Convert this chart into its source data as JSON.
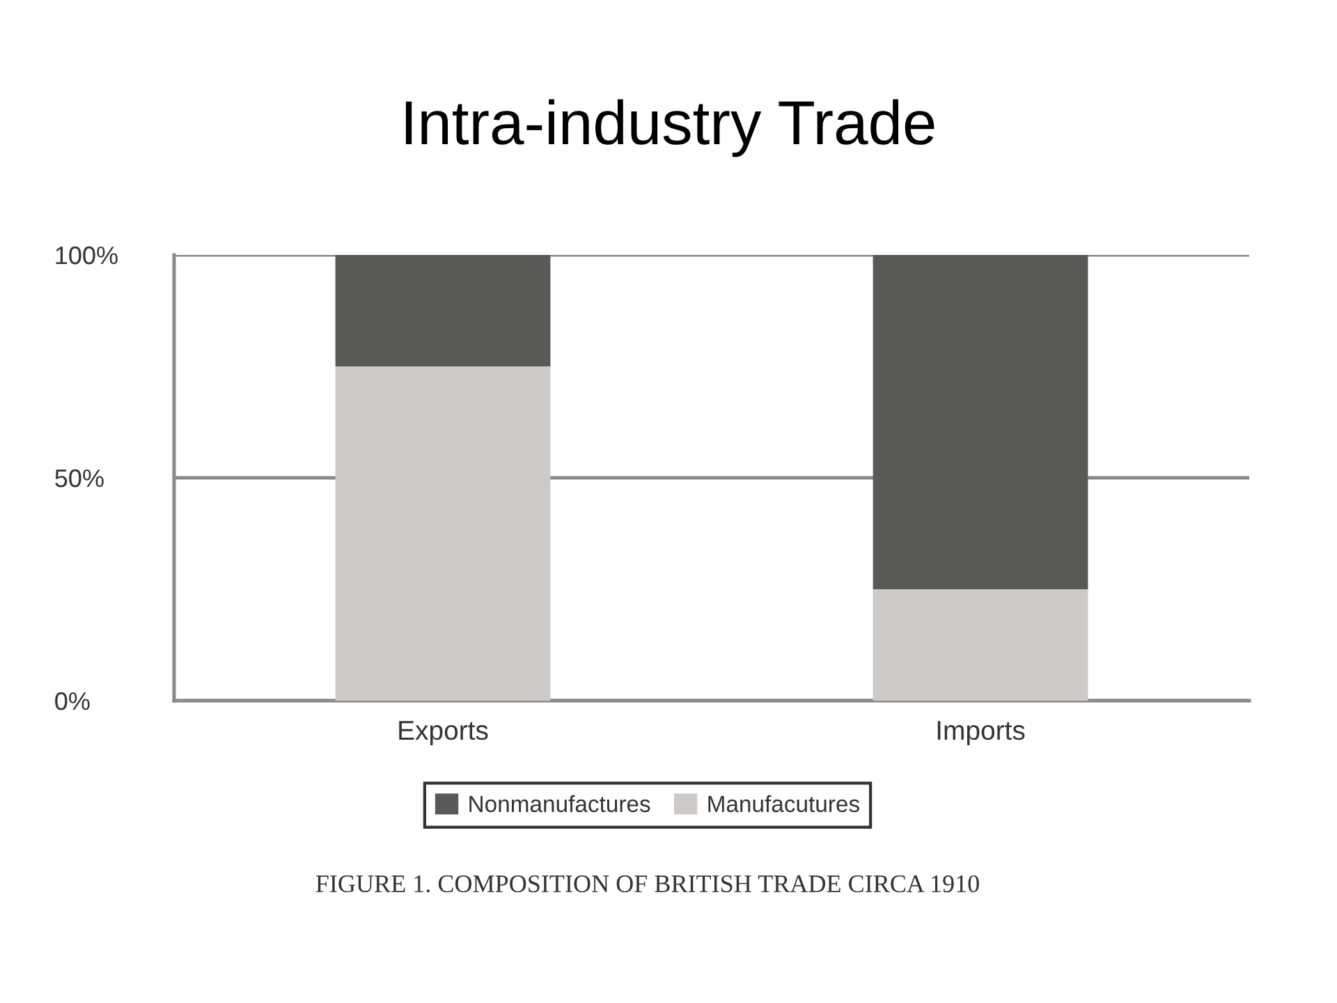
{
  "chart_data": {
    "type": "bar",
    "title": "Intra-industry Trade",
    "categories": [
      "Exports",
      "Imports"
    ],
    "series": [
      {
        "name": "Manufacutures",
        "color": "#cdcac7",
        "values": [
          75,
          25
        ]
      },
      {
        "name": "Nonmanufactures",
        "color": "#595957",
        "values": [
          25,
          75
        ]
      }
    ],
    "stacked": true,
    "ylim": [
      0,
      100
    ],
    "yticks": [
      {
        "value": 0,
        "label": "0%"
      },
      {
        "value": 50,
        "label": "50%"
      },
      {
        "value": 100,
        "label": "100%"
      }
    ],
    "grid": "y",
    "legend": "bottom",
    "annotations": [
      "FIGURE 1. COMPOSITION OF BRITISH TRADE CIRCA 1910"
    ]
  }
}
